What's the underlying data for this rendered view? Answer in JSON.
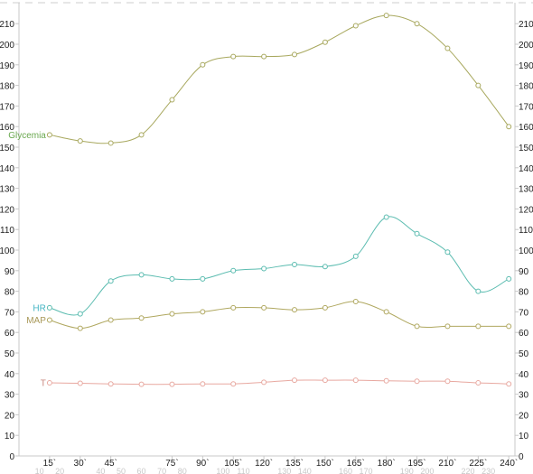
{
  "chart_data": {
    "type": "line",
    "title": "",
    "xlabel": "",
    "ylabel": "",
    "ylim": [
      0,
      215
    ],
    "y_ticks": [
      0,
      10,
      20,
      30,
      40,
      50,
      60,
      70,
      80,
      90,
      100,
      110,
      120,
      130,
      140,
      150,
      160,
      170,
      180,
      190,
      200,
      210
    ],
    "x": [
      15,
      30,
      45,
      60,
      75,
      90,
      105,
      120,
      135,
      150,
      165,
      180,
      195,
      210,
      225,
      240
    ],
    "x_major_labels": [
      {
        "x": 15,
        "label": "15`"
      },
      {
        "x": 30,
        "label": "30`"
      },
      {
        "x": 45,
        "label": "45`"
      },
      {
        "x": 75,
        "label": "75`"
      },
      {
        "x": 90,
        "label": "90`"
      },
      {
        "x": 105,
        "label": "105`"
      },
      {
        "x": 120,
        "label": "120`"
      },
      {
        "x": 135,
        "label": "135`"
      },
      {
        "x": 150,
        "label": "150`"
      },
      {
        "x": 165,
        "label": "165`"
      },
      {
        "x": 180,
        "label": "180`"
      },
      {
        "x": 195,
        "label": "195`"
      },
      {
        "x": 210,
        "label": "210`"
      },
      {
        "x": 225,
        "label": "225`"
      },
      {
        "x": 240,
        "label": "240`"
      }
    ],
    "x_minor_labels": [
      {
        "x": 10,
        "label": "10"
      },
      {
        "x": 20,
        "label": "20"
      },
      {
        "x": 40,
        "label": "40"
      },
      {
        "x": 50,
        "label": "50"
      },
      {
        "x": 60,
        "label": "60"
      },
      {
        "x": 70,
        "label": "70"
      },
      {
        "x": 80,
        "label": "80"
      },
      {
        "x": 100,
        "label": "100"
      },
      {
        "x": 110,
        "label": "110"
      },
      {
        "x": 130,
        "label": "130"
      },
      {
        "x": 140,
        "label": "140"
      },
      {
        "x": 160,
        "label": "160"
      },
      {
        "x": 170,
        "label": "170"
      },
      {
        "x": 190,
        "label": "190"
      },
      {
        "x": 200,
        "label": "200"
      },
      {
        "x": 220,
        "label": "220"
      },
      {
        "x": 230,
        "label": "230"
      }
    ],
    "series": [
      {
        "name": "Glycemia",
        "color": "#a8a85e",
        "label_color": "#6aa84f",
        "values": [
          156,
          153,
          152,
          156,
          173,
          190,
          194,
          194,
          195,
          201,
          209,
          214,
          210,
          198,
          180,
          160
        ]
      },
      {
        "name": "HR",
        "color": "#5bbcb0",
        "label_color": "#45b5c4",
        "values": [
          72,
          69,
          85,
          88,
          86,
          86,
          90,
          91,
          93,
          92,
          97,
          116,
          108,
          99,
          80,
          86
        ]
      },
      {
        "name": "MAP",
        "color": "#b0a860",
        "label_color": "#a89858",
        "values": [
          66,
          62,
          66,
          67,
          69,
          70,
          72,
          72,
          71,
          72,
          75,
          70,
          63,
          63,
          63,
          63
        ]
      },
      {
        "name": "T",
        "color": "#e8a8a0",
        "label_color": "#c88880",
        "values": [
          35.5,
          35.3,
          35.0,
          34.8,
          34.8,
          35.0,
          35.0,
          35.8,
          36.8,
          36.8,
          36.8,
          36.5,
          36.3,
          36.3,
          35.5,
          35.0
        ]
      }
    ]
  }
}
